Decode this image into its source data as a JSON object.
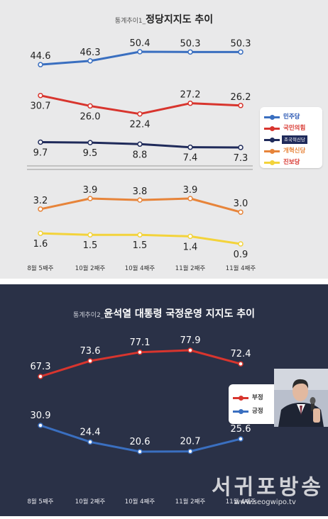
{
  "chart_data": [
    {
      "type": "line",
      "title": "통계추이1_정당지지도 추이",
      "title_prefix": "통계추이1_",
      "title_main": "정당지지도 추이",
      "categories": [
        "8월 5째주",
        "10월 2째주",
        "10월 4째주",
        "11월 2째주",
        "11월 4째주"
      ],
      "series": [
        {
          "name": "민주당",
          "values": [
            44.6,
            46.3,
            50.4,
            50.3,
            50.3
          ],
          "color": "#3a6fc0"
        },
        {
          "name": "국민의힘",
          "values": [
            30.7,
            26.0,
            22.4,
            27.2,
            26.2
          ],
          "color": "#d8352e"
        },
        {
          "name": "조국혁신당",
          "values": [
            9.7,
            9.5,
            8.8,
            7.4,
            7.3
          ],
          "color": "#1f2a5a"
        },
        {
          "name": "개혁신당",
          "values": [
            3.2,
            3.9,
            3.8,
            3.9,
            3.0
          ],
          "color": "#e7843a"
        },
        {
          "name": "진보당",
          "values": [
            1.6,
            1.5,
            1.5,
            1.4,
            0.9
          ],
          "color": "#f3d33b"
        }
      ],
      "value_labels": [
        [
          "44.6",
          "46.3",
          "50.4",
          "50.3",
          "50.3"
        ],
        [
          "30.7",
          "26.0",
          "22.4",
          "27.2",
          "26.2"
        ],
        [
          "9.7",
          "9.5",
          "8.8",
          "7.4",
          "7.3"
        ],
        [
          "3.2",
          "3.9",
          "3.8",
          "3.9",
          "3.0"
        ],
        [
          "1.6",
          "1.5",
          "1.5",
          "1.4",
          "0.9"
        ]
      ],
      "axis_break": true,
      "legend_position": "right"
    },
    {
      "type": "line",
      "title": "통계추이2_윤석열 대통령 국정운영 지지도 추이",
      "title_prefix": "통계추이2_",
      "title_main": "윤석열 대통령 국정운영 지지도 추이",
      "categories": [
        "8월 5째주",
        "10월 2째주",
        "10월 4째주",
        "11월 2째주",
        "11월 4째주"
      ],
      "series": [
        {
          "name": "부정",
          "values": [
            67.3,
            73.6,
            77.1,
            77.9,
            72.4
          ],
          "color": "#d8352e"
        },
        {
          "name": "긍정",
          "values": [
            30.9,
            24.4,
            20.6,
            20.7,
            25.6
          ],
          "color": "#3a6fc0"
        }
      ],
      "value_labels": [
        [
          "67.3",
          "73.6",
          "77.1",
          "77.9",
          "72.4"
        ],
        [
          "30.9",
          "24.4",
          "20.6",
          "20.7",
          "25.6"
        ]
      ],
      "legend_position": "right"
    }
  ],
  "legend1": {
    "items": [
      {
        "name": "민주당",
        "color": "#3a6fc0",
        "text_color": "#1f4fb0",
        "style": "text"
      },
      {
        "name": "국민의힘",
        "color": "#d8352e",
        "text_color": "#d8352e",
        "style": "text"
      },
      {
        "name": "조국혁신당",
        "color": "#1f2a5a",
        "text_color": "#ffffff",
        "style": "tag"
      },
      {
        "name": "개혁신당",
        "color": "#e7843a",
        "text_color": "#e7843a",
        "style": "text"
      },
      {
        "name": "진보당",
        "color": "#f3d33b",
        "text_color": "#d8352e",
        "style": "text"
      }
    ]
  },
  "legend2": {
    "items": [
      {
        "name": "부정",
        "color": "#d8352e"
      },
      {
        "name": "긍정",
        "color": "#3a6fc0"
      }
    ]
  },
  "watermark": {
    "title": "서귀포방송",
    "url": "www.seogwipo.tv"
  }
}
